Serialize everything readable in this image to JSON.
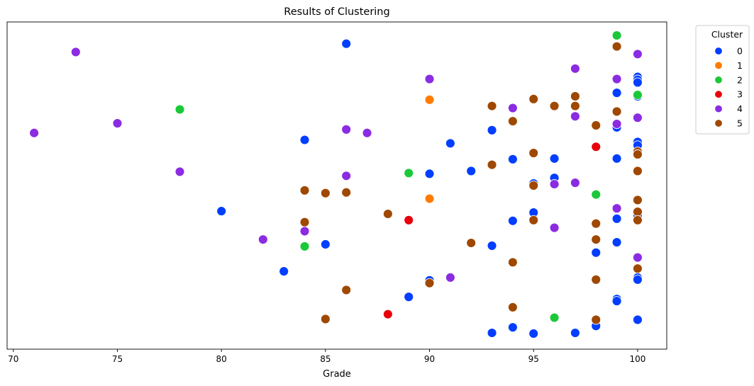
{
  "chart_data": {
    "type": "scatter",
    "title": "Results of Clustering",
    "xlabel": "Grade",
    "ylabel": "",
    "xlim": [
      69.7,
      101.4
    ],
    "x_ticks": [
      70,
      75,
      80,
      85,
      90,
      95,
      100
    ],
    "y_axis_visible": false,
    "grid": false,
    "legend": {
      "title": "Cluster",
      "placement": "outside-top-right",
      "entries": [
        {
          "label": "0",
          "color": "#023eff"
        },
        {
          "label": "1",
          "color": "#ff7c00"
        },
        {
          "label": "2",
          "color": "#1ac938"
        },
        {
          "label": "3",
          "color": "#e8000b"
        },
        {
          "label": "4",
          "color": "#8b2be2"
        },
        {
          "label": "5",
          "color": "#9f4800"
        }
      ]
    },
    "ylim": [
      0,
      430
    ],
    "series": [
      {
        "name": "0",
        "color": "#023eff",
        "points": [
          [
            86,
            418
          ],
          [
            100,
            370
          ],
          [
            100,
            366
          ],
          [
            100,
            362
          ],
          [
            99,
            347
          ],
          [
            100,
            342
          ],
          [
            97,
            313
          ],
          [
            99,
            297
          ],
          [
            93,
            293
          ],
          [
            84,
            279
          ],
          [
            100,
            276
          ],
          [
            100,
            271
          ],
          [
            91,
            274
          ],
          [
            94,
            251
          ],
          [
            96,
            252
          ],
          [
            99,
            252
          ],
          [
            92,
            234
          ],
          [
            90,
            230
          ],
          [
            96,
            224
          ],
          [
            95,
            216
          ],
          [
            80,
            176
          ],
          [
            95,
            174
          ],
          [
            100,
            170
          ],
          [
            99,
            165
          ],
          [
            94,
            162
          ],
          [
            99,
            131
          ],
          [
            85,
            128
          ],
          [
            93,
            126
          ],
          [
            98,
            116
          ],
          [
            83,
            89
          ],
          [
            100,
            80
          ],
          [
            100,
            77
          ],
          [
            90,
            76
          ],
          [
            89,
            52
          ],
          [
            99,
            49
          ],
          [
            99,
            46
          ],
          [
            100,
            19
          ],
          [
            98,
            10
          ],
          [
            94,
            8
          ],
          [
            93,
            0
          ],
          [
            97,
            0
          ],
          [
            95,
            -1
          ]
        ]
      },
      {
        "name": "1",
        "color": "#ff7c00",
        "points": [
          [
            90,
            337
          ],
          [
            90,
            194
          ]
        ]
      },
      {
        "name": "2",
        "color": "#1ac938",
        "points": [
          [
            99,
            430
          ],
          [
            100,
            344
          ],
          [
            78,
            323
          ],
          [
            89,
            231
          ],
          [
            98,
            200
          ],
          [
            84,
            125
          ],
          [
            96,
            22
          ]
        ]
      },
      {
        "name": "4",
        "color": "#8b2be2",
        "points": [
          [
            73,
            406
          ],
          [
            100,
            403
          ],
          [
            97,
            382
          ],
          [
            90,
            367
          ],
          [
            99,
            367
          ],
          [
            94,
            325
          ],
          [
            100,
            311
          ],
          [
            97,
            313
          ],
          [
            71,
            289
          ],
          [
            75,
            303
          ],
          [
            86,
            294
          ],
          [
            87,
            289
          ],
          [
            99,
            302
          ],
          [
            78,
            233
          ],
          [
            86,
            227
          ],
          [
            96,
            215
          ],
          [
            97,
            217
          ],
          [
            99,
            180
          ],
          [
            84,
            147
          ],
          [
            82,
            135
          ],
          [
            96,
            152
          ],
          [
            100,
            109
          ],
          [
            91,
            80
          ]
        ]
      },
      {
        "name": "3",
        "color": "#e8000b",
        "points": [
          [
            98,
            269
          ],
          [
            89,
            163
          ],
          [
            88,
            27
          ]
        ]
      },
      {
        "name": "5",
        "color": "#9f4800",
        "points": [
          [
            99,
            414
          ],
          [
            97,
            342
          ],
          [
            95,
            338
          ],
          [
            93,
            328
          ],
          [
            96,
            328
          ],
          [
            97,
            328
          ],
          [
            99,
            320
          ],
          [
            94,
            306
          ],
          [
            98,
            300
          ],
          [
            100,
            262
          ],
          [
            100,
            258
          ],
          [
            95,
            260
          ],
          [
            93,
            243
          ],
          [
            100,
            234
          ],
          [
            95,
            213
          ],
          [
            84,
            206
          ],
          [
            85,
            202
          ],
          [
            86,
            203
          ],
          [
            100,
            192
          ],
          [
            88,
            172
          ],
          [
            100,
            175
          ],
          [
            100,
            163
          ],
          [
            95,
            163
          ],
          [
            84,
            160
          ],
          [
            98,
            158
          ],
          [
            92,
            130
          ],
          [
            98,
            135
          ],
          [
            94,
            102
          ],
          [
            100,
            93
          ],
          [
            98,
            77
          ],
          [
            90,
            72
          ],
          [
            86,
            62
          ],
          [
            94,
            37
          ],
          [
            85,
            20
          ],
          [
            98,
            19
          ]
        ]
      }
    ]
  }
}
